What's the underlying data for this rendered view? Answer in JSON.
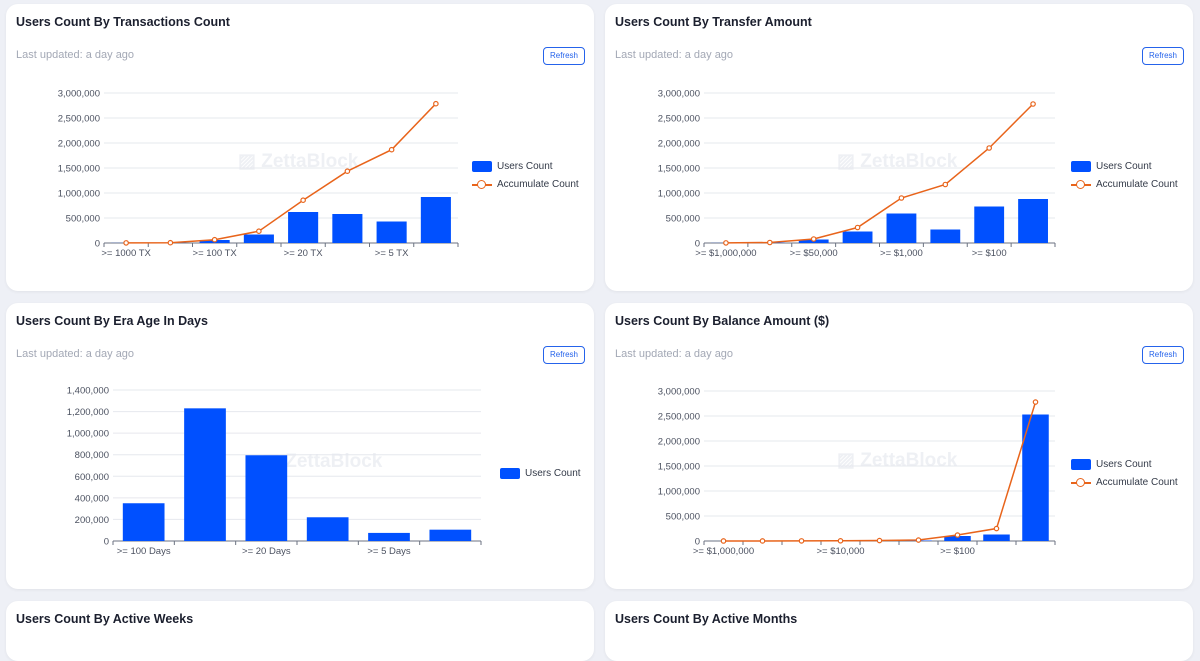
{
  "cards": [
    {
      "title": "Users Count By Transactions Count",
      "updated": "Last updated: a day ago",
      "refresh": "Refresh",
      "watermark": "ZettaBlock"
    },
    {
      "title": "Users Count By Transfer Amount",
      "updated": "Last updated: a day ago",
      "refresh": "Refresh",
      "watermark": "ZettaBlock"
    },
    {
      "title": "Users Count By Era Age In Days",
      "updated": "Last updated: a day ago",
      "refresh": "Refresh",
      "watermark": "ZettaBlock"
    },
    {
      "title": "Users Count By Balance Amount ($)",
      "updated": "Last updated: a day ago",
      "refresh": "Refresh",
      "watermark": "ZettaBlock"
    },
    {
      "title": "Users Count By Active Weeks"
    },
    {
      "title": "Users Count By Active Months"
    }
  ],
  "colors": {
    "bar": "#0050ff",
    "line": "#e8641b",
    "grid": "#e6e8ee",
    "axis": "#6b7280"
  },
  "chart_data": [
    {
      "type": "bar",
      "title": "Users Count By Transactions Count",
      "categories": [
        ">= 1000 TX",
        "",
        ">= 100 TX",
        "",
        ">= 20 TX",
        "",
        ">= 5 TX",
        ""
      ],
      "y_ticks": [
        "0",
        "500,000",
        "1,000,000",
        "1,500,000",
        "2,000,000",
        "2,500,000",
        "3,000,000"
      ],
      "ylim": [
        0,
        3000000
      ],
      "series": [
        {
          "name": "Users Count",
          "kind": "bar",
          "values": [
            2000,
            4000,
            60000,
            170000,
            620000,
            580000,
            430000,
            920000
          ]
        },
        {
          "name": "Accumulate Count",
          "kind": "line",
          "values": [
            2000,
            6000,
            66000,
            236000,
            856000,
            1436000,
            1866000,
            2786000
          ]
        }
      ],
      "legend": "right"
    },
    {
      "type": "bar",
      "title": "Users Count By Transfer Amount",
      "categories": [
        ">= $1,000,000",
        "",
        ">= $50,000",
        "",
        ">= $1,000",
        "",
        ">= $100",
        ""
      ],
      "y_ticks": [
        "0",
        "500,000",
        "1,000,000",
        "1,500,000",
        "2,000,000",
        "2,500,000",
        "3,000,000"
      ],
      "ylim": [
        0,
        3000000
      ],
      "series": [
        {
          "name": "Users Count",
          "kind": "bar",
          "values": [
            2000,
            8000,
            70000,
            230000,
            590000,
            270000,
            730000,
            880000
          ]
        },
        {
          "name": "Accumulate Count",
          "kind": "line",
          "values": [
            2000,
            10000,
            80000,
            310000,
            900000,
            1170000,
            1900000,
            2780000
          ]
        }
      ],
      "legend": "right"
    },
    {
      "type": "bar",
      "title": "Users Count By Era Age In Days",
      "categories": [
        ">= 100 Days",
        "",
        ">= 20 Days",
        "",
        ">= 5 Days",
        ""
      ],
      "y_ticks": [
        "0",
        "200,000",
        "400,000",
        "600,000",
        "800,000",
        "1,000,000",
        "1,200,000",
        "1,400,000"
      ],
      "ylim": [
        0,
        1400000
      ],
      "series": [
        {
          "name": "Users Count",
          "kind": "bar",
          "values": [
            350000,
            1230000,
            795000,
            220000,
            75000,
            105000
          ]
        }
      ],
      "legend": "right"
    },
    {
      "type": "bar",
      "title": "Users Count By Balance Amount ($)",
      "categories": [
        ">= $1,000,000",
        "",
        "",
        ">= $10,000",
        "",
        "",
        ">= $100",
        "",
        ""
      ],
      "y_ticks": [
        "0",
        "500,000",
        "1,000,000",
        "1,500,000",
        "2,000,000",
        "2,500,000",
        "3,000,000"
      ],
      "ylim": [
        0,
        3000000
      ],
      "series": [
        {
          "name": "Users Count",
          "kind": "bar",
          "values": [
            500,
            500,
            1000,
            2000,
            5000,
            10000,
            100000,
            130000,
            2530000
          ]
        },
        {
          "name": "Accumulate Count",
          "kind": "line",
          "values": [
            500,
            1000,
            2000,
            4000,
            9000,
            19000,
            119000,
            249000,
            2779000
          ]
        }
      ],
      "legend": "right"
    }
  ]
}
